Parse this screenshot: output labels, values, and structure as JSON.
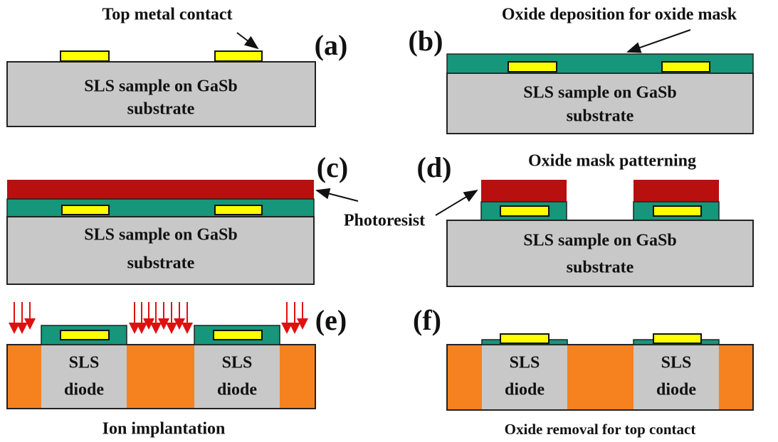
{
  "panels": [
    {
      "label": "(a)",
      "caption": "Top metal contact",
      "sample": [
        "SLS sample on GaSb",
        "substrate"
      ]
    },
    {
      "label": "(b)",
      "caption": "Oxide deposition for oxide mask",
      "sample": [
        "SLS sample on GaSb",
        "substrate"
      ]
    },
    {
      "label": "(c)",
      "sample": [
        "SLS sample on GaSb",
        "substrate"
      ]
    },
    {
      "label": "(d)",
      "caption": "Oxide mask patterning",
      "sample": [
        "SLS sample on GaSb",
        "substrate"
      ]
    },
    {
      "label": "(e)",
      "caption": "Ion implantation",
      "diodes": [
        [
          "SLS",
          "diode"
        ],
        [
          "SLS",
          "diode"
        ]
      ]
    },
    {
      "label": "(f)",
      "caption": "Oxide removal for top contact",
      "diodes": [
        [
          "SLS",
          "diode"
        ],
        [
          "SLS",
          "diode"
        ]
      ]
    }
  ],
  "photoresist_label": "Photoresist"
}
